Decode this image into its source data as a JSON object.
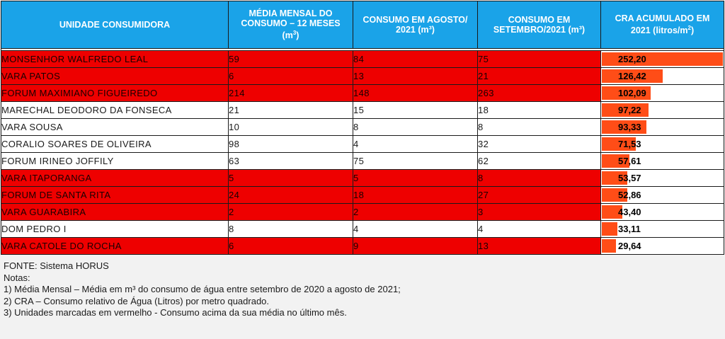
{
  "headers": {
    "unit": "UNIDADE CONSUMIDORA",
    "avg_line1": "MÉDIA MENSAL DO",
    "avg_line2": "CONSUMO – 12 MESES",
    "avg_unit": "(m",
    "avg_unit_sup": "3",
    "aug_line1": "CONSUMO EM AGOSTO/",
    "aug_line2": "2021 (m³)",
    "sep_line1": "CONSUMO EM",
    "sep_line2": "SETEMBRO/2021 (m³)",
    "cra_line1": "CRA ACUMULADO EM",
    "cra_line2": "2021 (litros/m",
    "cra_sup": "2"
  },
  "rows": [
    {
      "unit": "MONSENHOR WALFREDO LEAL",
      "avg": "59",
      "aug": "84",
      "sep": "75",
      "cra": "252,20",
      "cra_value": 252.2,
      "red": true
    },
    {
      "unit": "VARA PATOS",
      "avg": "6",
      "aug": "13",
      "sep": "21",
      "cra": "126,42",
      "cra_value": 126.42,
      "red": true
    },
    {
      "unit": "FORUM MAXIMIANO FIGUEIREDO",
      "avg": "214",
      "aug": "148",
      "sep": "263",
      "cra": "102,09",
      "cra_value": 102.09,
      "red": true
    },
    {
      "unit": "MARECHAL DEODORO DA FONSECA",
      "avg": "21",
      "aug": "15",
      "sep": "18",
      "cra": "97,22",
      "cra_value": 97.22,
      "red": false
    },
    {
      "unit": "VARA SOUSA",
      "avg": "10",
      "aug": "8",
      "sep": "8",
      "cra": "93,33",
      "cra_value": 93.33,
      "red": false
    },
    {
      "unit": "CORALIO SOARES DE OLIVEIRA",
      "avg": "98",
      "aug": "4",
      "sep": "32",
      "cra": "71,53",
      "cra_value": 71.53,
      "red": false
    },
    {
      "unit": "FORUM IRINEO JOFFILY",
      "avg": "63",
      "aug": "75",
      "sep": "62",
      "cra": "57,61",
      "cra_value": 57.61,
      "red": false
    },
    {
      "unit": "VARA ITAPORANGA",
      "avg": "5",
      "aug": "5",
      "sep": "8",
      "cra": "53,57",
      "cra_value": 53.57,
      "red": true
    },
    {
      "unit": "FORUM DE SANTA RITA",
      "avg": "24",
      "aug": "18",
      "sep": "27",
      "cra": "52,86",
      "cra_value": 52.86,
      "red": true
    },
    {
      "unit": "VARA GUARABIRA",
      "avg": "2",
      "aug": "2",
      "sep": "3",
      "cra": "43,40",
      "cra_value": 43.4,
      "red": true
    },
    {
      "unit": "DOM PEDRO I",
      "avg": "8",
      "aug": "4",
      "sep": "4",
      "cra": "33,11",
      "cra_value": 33.11,
      "red": false
    },
    {
      "unit": "VARA CATOLE DO ROCHA",
      "avg": "6",
      "aug": "9",
      "sep": "13",
      "cra": "29,64",
      "cra_value": 29.64,
      "red": true
    }
  ],
  "colors": {
    "header_bg": "#1aa3e8",
    "highlight_red": "#ee0000",
    "bar_orange": "#ff4d17"
  },
  "notes": {
    "source": "FONTE: Sistema HORUS",
    "title": "Notas:",
    "note1": "1) Média Mensal – Média em m³ do consumo de água entre setembro de 2020 a agosto de 2021;",
    "note2": "2) CRA – Consumo relativo de Água (Litros) por metro quadrado.",
    "note3": "3) Unidades marcadas em vermelho - Consumo acima da sua média no último mês."
  }
}
